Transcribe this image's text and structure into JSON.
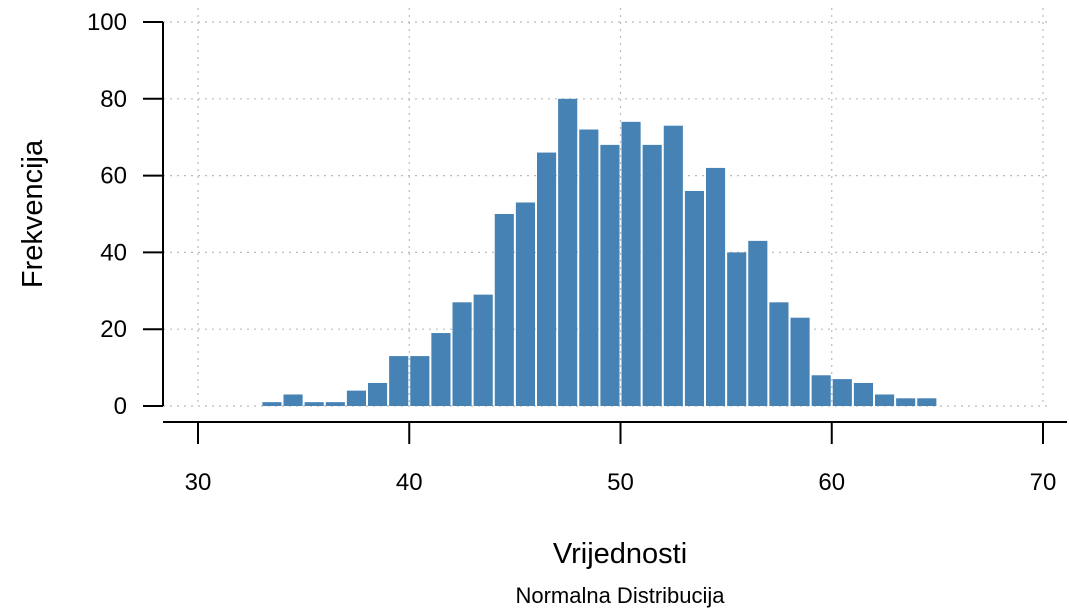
{
  "chart_data": {
    "type": "bar",
    "subtype": "histogram",
    "xlabel": "Vrijednosti",
    "ylabel": "Frekvencija",
    "caption": "Normalna Distribucija",
    "xlim": [
      30,
      70
    ],
    "ylim": [
      0,
      100
    ],
    "x_ticks": [
      30,
      40,
      50,
      60,
      70
    ],
    "y_ticks": [
      0,
      20,
      40,
      60,
      80,
      100
    ],
    "grid": true,
    "bar_color": "#4682B4",
    "bins": [
      {
        "x0": 33,
        "x1": 34,
        "count": 1
      },
      {
        "x0": 34,
        "x1": 35,
        "count": 3
      },
      {
        "x0": 35,
        "x1": 36,
        "count": 1
      },
      {
        "x0": 36,
        "x1": 37,
        "count": 1
      },
      {
        "x0": 37,
        "x1": 38,
        "count": 4
      },
      {
        "x0": 38,
        "x1": 39,
        "count": 6
      },
      {
        "x0": 39,
        "x1": 40,
        "count": 13
      },
      {
        "x0": 40,
        "x1": 41,
        "count": 13
      },
      {
        "x0": 41,
        "x1": 42,
        "count": 19
      },
      {
        "x0": 42,
        "x1": 43,
        "count": 27
      },
      {
        "x0": 43,
        "x1": 44,
        "count": 29
      },
      {
        "x0": 44,
        "x1": 45,
        "count": 50
      },
      {
        "x0": 45,
        "x1": 46,
        "count": 53
      },
      {
        "x0": 46,
        "x1": 47,
        "count": 66
      },
      {
        "x0": 47,
        "x1": 48,
        "count": 80
      },
      {
        "x0": 48,
        "x1": 49,
        "count": 72
      },
      {
        "x0": 49,
        "x1": 50,
        "count": 68
      },
      {
        "x0": 50,
        "x1": 51,
        "count": 74
      },
      {
        "x0": 51,
        "x1": 52,
        "count": 68
      },
      {
        "x0": 52,
        "x1": 53,
        "count": 73
      },
      {
        "x0": 53,
        "x1": 54,
        "count": 56
      },
      {
        "x0": 54,
        "x1": 55,
        "count": 62
      },
      {
        "x0": 55,
        "x1": 56,
        "count": 40
      },
      {
        "x0": 56,
        "x1": 57,
        "count": 43
      },
      {
        "x0": 57,
        "x1": 58,
        "count": 27
      },
      {
        "x0": 58,
        "x1": 59,
        "count": 23
      },
      {
        "x0": 59,
        "x1": 60,
        "count": 8
      },
      {
        "x0": 60,
        "x1": 61,
        "count": 7
      },
      {
        "x0": 61,
        "x1": 62,
        "count": 6
      },
      {
        "x0": 62,
        "x1": 63,
        "count": 3
      },
      {
        "x0": 63,
        "x1": 64,
        "count": 2
      },
      {
        "x0": 64,
        "x1": 65,
        "count": 2
      }
    ]
  }
}
